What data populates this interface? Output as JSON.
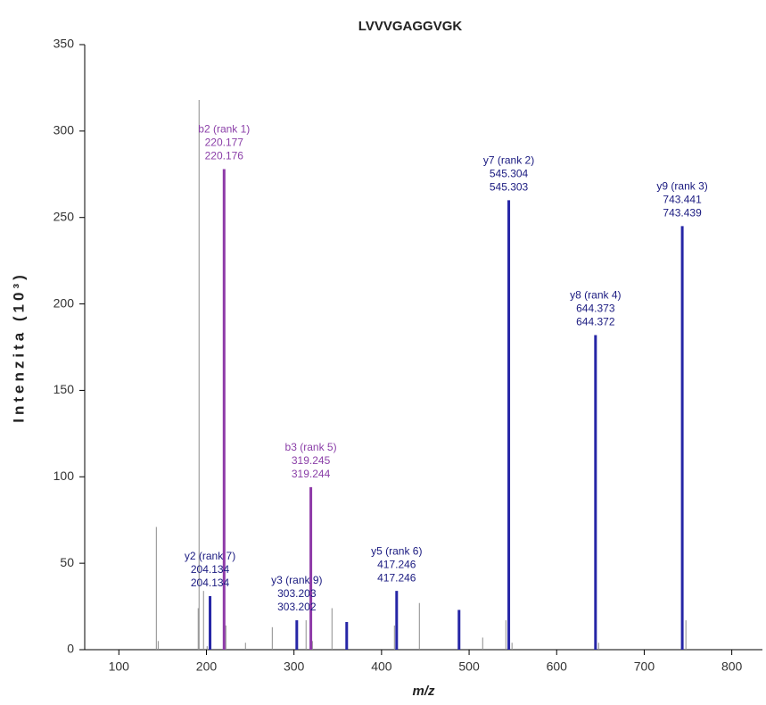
{
  "chart_data": {
    "type": "stem",
    "title": "LVVVGAGGVGK",
    "x_label": "m/z",
    "y_label": "Intenzita (10³)",
    "xlim": [
      61,
      835
    ],
    "xticks": [
      100,
      200,
      300,
      400,
      500,
      600,
      700,
      800
    ],
    "ylim": [
      0,
      350
    ],
    "yticks": [
      0,
      50,
      100,
      150,
      200,
      250,
      300,
      350
    ],
    "series": [
      {
        "color": "#8c8c8c",
        "width": 1,
        "x": [
          142.8,
          144.9,
          190.6,
          191.6,
          196.7,
          200.8,
          222.2,
          244.6,
          275.2,
          313.8,
          321,
          343.4,
          414.7,
          443.2,
          515.5,
          542,
          549,
          647.9,
          747.6
        ],
        "values": [
          71,
          5,
          24,
          318,
          34,
          2,
          14,
          4,
          13,
          17,
          5,
          24,
          14,
          27,
          7,
          17,
          4,
          4,
          17
        ]
      },
      {
        "color": "#8e3aa8",
        "text_color": "#8b3fa8",
        "width": 3,
        "x": [
          220.177,
          319.245
        ],
        "values": [
          278,
          94
        ],
        "labels": [
          "b2 (rank 1)",
          "b3 (rank 5)"
        ],
        "mz_labels": [
          [
            "220.177",
            "220.176"
          ],
          [
            "319.245",
            "319.244"
          ]
        ]
      },
      {
        "color": "#2626a6",
        "text_color": "#1a1a80",
        "width": 3,
        "x": [
          204.134,
          303.203,
          360.2,
          417.246,
          488.5,
          545.304,
          644.373,
          743.441
        ],
        "values": [
          31,
          17,
          16,
          34,
          23,
          260,
          182,
          245
        ],
        "labels": [
          "y2 (rank 7)",
          "y3 (rank 9)",
          null,
          "y5 (rank 6)",
          null,
          "y7 (rank 2)",
          "y8 (rank 4)",
          "y9 (rank 3)"
        ],
        "mz_labels": [
          [
            "204.134",
            "204.134"
          ],
          [
            "303.203",
            "303.202"
          ],
          null,
          [
            "417.246",
            "417.246"
          ],
          null,
          [
            "545.304",
            "545.303"
          ],
          [
            "644.373",
            "644.372"
          ],
          [
            "743.441",
            "743.439"
          ]
        ]
      }
    ]
  }
}
